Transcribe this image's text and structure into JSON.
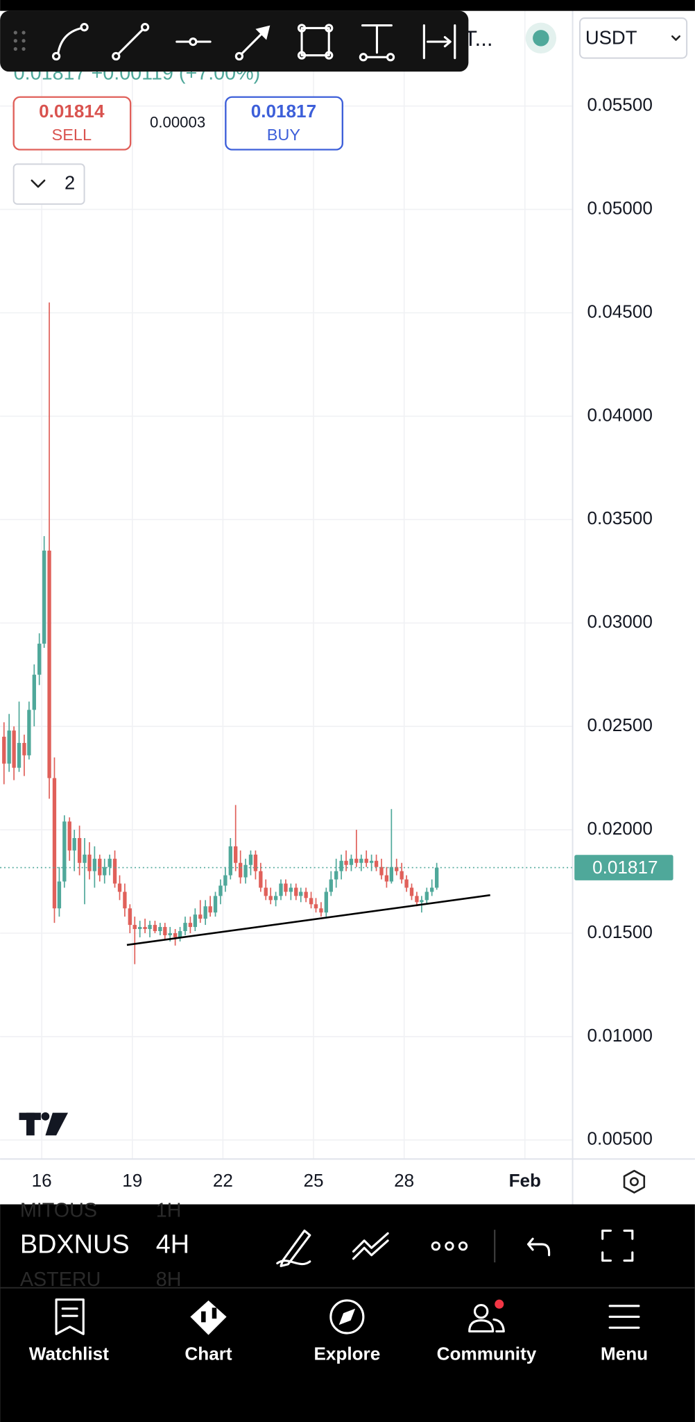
{
  "chart_data": {
    "type": "candlestick",
    "x": [
      14.75,
      14.92,
      15.08,
      15.25,
      15.42,
      15.58,
      15.75,
      15.92,
      16.08,
      16.25,
      16.42,
      16.58,
      16.75,
      16.92,
      17.08,
      17.25,
      17.42,
      17.58,
      17.75,
      17.92,
      18.08,
      18.25,
      18.42,
      18.58,
      18.75,
      18.92,
      19.08,
      19.25,
      19.42,
      19.58,
      19.75,
      19.92,
      20.08,
      20.25,
      20.42,
      20.58,
      20.75,
      20.92,
      21.08,
      21.25,
      21.42,
      21.58,
      21.75,
      21.92,
      22.08,
      22.25,
      22.42,
      22.58,
      22.75,
      22.92,
      23.08,
      23.25,
      23.42,
      23.58,
      23.75,
      23.92,
      24.08,
      24.25,
      24.42,
      24.58,
      24.75,
      24.92,
      25.08,
      25.25,
      25.42,
      25.58,
      25.75,
      25.92,
      26.08,
      26.25,
      26.42,
      26.58,
      26.75,
      26.92,
      27.08,
      27.25,
      27.42,
      27.58,
      27.75,
      27.92,
      28.08,
      28.25,
      28.42,
      28.58,
      28.75,
      28.92,
      29.08
    ],
    "open": [
      0.0245,
      0.0232,
      0.0248,
      0.023,
      0.0242,
      0.0236,
      0.0258,
      0.0275,
      0.029,
      0.0335,
      0.0225,
      0.0162,
      0.0175,
      0.0204,
      0.019,
      0.0196,
      0.0184,
      0.0188,
      0.018,
      0.0186,
      0.0178,
      0.0182,
      0.0186,
      0.0174,
      0.017,
      0.0162,
      0.0154,
      0.0152,
      0.0153,
      0.0152,
      0.0154,
      0.0151,
      0.0153,
      0.0149,
      0.015,
      0.0148,
      0.0151,
      0.0155,
      0.0153,
      0.0159,
      0.0157,
      0.0163,
      0.016,
      0.0168,
      0.0173,
      0.0178,
      0.0192,
      0.0184,
      0.0177,
      0.0183,
      0.0188,
      0.018,
      0.0172,
      0.0168,
      0.0166,
      0.0168,
      0.0174,
      0.017,
      0.0172,
      0.0168,
      0.017,
      0.0167,
      0.0164,
      0.0162,
      0.016,
      0.017,
      0.0176,
      0.018,
      0.0185,
      0.0183,
      0.0186,
      0.0184,
      0.0186,
      0.0184,
      0.0185,
      0.0182,
      0.0178,
      0.0175,
      0.0182,
      0.018,
      0.0176,
      0.0172,
      0.0168,
      0.0165,
      0.0166,
      0.017,
      0.0172
    ],
    "high": [
      0.0252,
      0.0256,
      0.025,
      0.0262,
      0.0246,
      0.0262,
      0.028,
      0.0295,
      0.0342,
      0.0455,
      0.0235,
      0.0182,
      0.0207,
      0.0206,
      0.02,
      0.0202,
      0.0196,
      0.0194,
      0.0192,
      0.0188,
      0.0186,
      0.0188,
      0.019,
      0.0178,
      0.0174,
      0.0164,
      0.0158,
      0.0156,
      0.0157,
      0.0156,
      0.0156,
      0.0155,
      0.0155,
      0.0153,
      0.0152,
      0.0153,
      0.0158,
      0.0158,
      0.0162,
      0.0166,
      0.0166,
      0.0168,
      0.017,
      0.0176,
      0.0182,
      0.0196,
      0.0212,
      0.019,
      0.0186,
      0.019,
      0.019,
      0.0184,
      0.0176,
      0.0172,
      0.017,
      0.0176,
      0.0176,
      0.0174,
      0.0174,
      0.0172,
      0.0172,
      0.017,
      0.0167,
      0.0165,
      0.0172,
      0.018,
      0.0186,
      0.0188,
      0.019,
      0.0188,
      0.02,
      0.0188,
      0.019,
      0.0188,
      0.0188,
      0.0186,
      0.0182,
      0.021,
      0.0186,
      0.0184,
      0.0178,
      0.0174,
      0.017,
      0.0168,
      0.0172,
      0.0176,
      0.0184
    ],
    "low": [
      0.0222,
      0.0228,
      0.0224,
      0.0228,
      0.0226,
      0.0234,
      0.025,
      0.027,
      0.0288,
      0.0215,
      0.0155,
      0.0158,
      0.0172,
      0.0185,
      0.018,
      0.0178,
      0.0164,
      0.0176,
      0.0172,
      0.0175,
      0.0174,
      0.0178,
      0.0172,
      0.0166,
      0.0158,
      0.015,
      0.0135,
      0.0148,
      0.015,
      0.0148,
      0.015,
      0.0149,
      0.0147,
      0.0146,
      0.0144,
      0.0146,
      0.0149,
      0.015,
      0.0151,
      0.0155,
      0.0154,
      0.0158,
      0.0158,
      0.0164,
      0.017,
      0.0176,
      0.018,
      0.0174,
      0.0174,
      0.0178,
      0.0176,
      0.017,
      0.0166,
      0.0164,
      0.0163,
      0.0166,
      0.0168,
      0.0166,
      0.0166,
      0.0165,
      0.0165,
      0.0162,
      0.016,
      0.0158,
      0.0158,
      0.0168,
      0.0172,
      0.0176,
      0.018,
      0.018,
      0.0182,
      0.018,
      0.0182,
      0.018,
      0.018,
      0.0176,
      0.0172,
      0.0174,
      0.0178,
      0.0174,
      0.017,
      0.0166,
      0.0163,
      0.016,
      0.0164,
      0.0168,
      0.0171
    ],
    "close": [
      0.0232,
      0.0248,
      0.023,
      0.0242,
      0.0236,
      0.0258,
      0.0275,
      0.029,
      0.0335,
      0.0225,
      0.0162,
      0.0175,
      0.0204,
      0.019,
      0.0196,
      0.0184,
      0.0188,
      0.018,
      0.0186,
      0.0178,
      0.0182,
      0.0186,
      0.0174,
      0.017,
      0.0162,
      0.0154,
      0.0152,
      0.0153,
      0.0152,
      0.0154,
      0.0151,
      0.0153,
      0.0149,
      0.015,
      0.0148,
      0.0151,
      0.0155,
      0.0153,
      0.0159,
      0.0157,
      0.0163,
      0.016,
      0.0168,
      0.0173,
      0.0178,
      0.0192,
      0.0184,
      0.0177,
      0.0183,
      0.0188,
      0.018,
      0.0172,
      0.0168,
      0.0166,
      0.0168,
      0.0174,
      0.017,
      0.0172,
      0.0168,
      0.017,
      0.0167,
      0.0164,
      0.0162,
      0.016,
      0.017,
      0.0176,
      0.018,
      0.0185,
      0.0183,
      0.0186,
      0.0184,
      0.0186,
      0.0184,
      0.0185,
      0.0182,
      0.0178,
      0.0175,
      0.0182,
      0.018,
      0.0176,
      0.0172,
      0.0168,
      0.0165,
      0.0166,
      0.017,
      0.0172,
      0.01817
    ],
    "up_color": "#4fa89a",
    "down_color": "#e0605a",
    "xlim": [
      14.62,
      33.58
    ],
    "xticks": [
      16,
      19,
      22,
      25,
      28,
      {
        "value": 32,
        "label": "Feb"
      }
    ],
    "ylim": [
      0.00408,
      0.0596
    ],
    "yticks": [
      {
        "value": 0.005,
        "label": "0.00500"
      },
      {
        "value": 0.01,
        "label": "0.01000"
      },
      {
        "value": 0.015,
        "label": "0.01500"
      },
      {
        "value": 0.02,
        "label": "0.02000"
      },
      {
        "value": 0.025,
        "label": "0.02500"
      },
      {
        "value": 0.03,
        "label": "0.03000"
      },
      {
        "value": 0.035,
        "label": "0.03500"
      },
      {
        "value": 0.04,
        "label": "0.04000"
      },
      {
        "value": 0.045,
        "label": "0.04500"
      },
      {
        "value": 0.05,
        "label": "0.05000"
      },
      {
        "value": 0.055,
        "label": "0.05500"
      }
    ],
    "grid": true,
    "last_price": 0.01817,
    "last_price_color": "#4fa89a",
    "trendline": {
      "x": [
        18.82,
        30.85
      ],
      "y": [
        0.01443,
        0.01684
      ],
      "color": "#000000"
    }
  },
  "toolbar": {
    "symbol": "T..."
  },
  "header": {
    "price_change": "0.01817 +0.00119 (+7.00%)",
    "sell_price": "0.01814",
    "sell_label": "SELL",
    "spread": "0.00003",
    "buy_price": "0.01817",
    "buy_label": "BUY",
    "indicator_count": "2",
    "currency": "USDT"
  },
  "bottom_bar": {
    "symbols": [
      {
        "name": "MITOUS",
        "interval": "1H"
      },
      {
        "name": "BDXNUS",
        "interval": "4H"
      },
      {
        "name": "ASTERU",
        "interval": "8H"
      }
    ]
  },
  "tabs": [
    "Watchlist",
    "Chart",
    "Explore",
    "Community",
    "Menu"
  ]
}
